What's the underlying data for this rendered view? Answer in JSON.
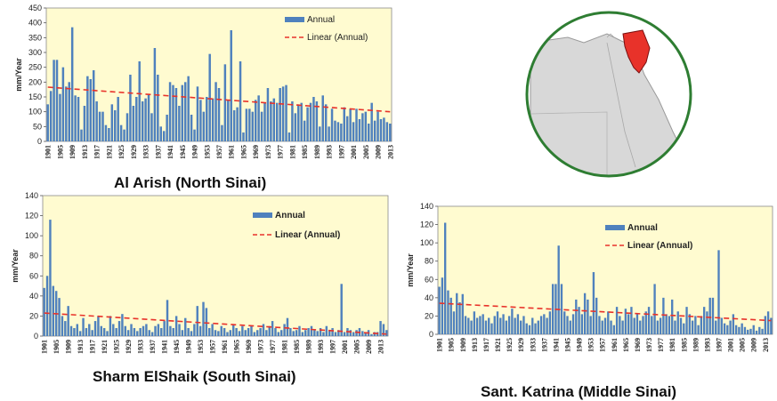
{
  "chart_data": [
    {
      "type": "bar",
      "title": "Al Arish (North Sinai)",
      "ylabel": "mm/Year",
      "ylim": [
        0,
        450
      ],
      "yticks": [
        0,
        50,
        100,
        150,
        200,
        250,
        300,
        350,
        400,
        450
      ],
      "x_start": 1901,
      "x_tick_labels": [
        "1901",
        "1905",
        "1909",
        "1913",
        "1917",
        "1921",
        "1925",
        "1929",
        "1933",
        "1937",
        "1941",
        "1945",
        "1949",
        "1953",
        "1957",
        "1961",
        "1965",
        "1969",
        "1973",
        "1977",
        "1981",
        "1985",
        "1989",
        "1993",
        "1997",
        "2001",
        "2005",
        "2009",
        "2013"
      ],
      "series": [
        {
          "name": "Annual",
          "color": "#4f81bd",
          "values": [
            125,
            170,
            275,
            275,
            160,
            250,
            185,
            200,
            385,
            155,
            150,
            40,
            120,
            220,
            210,
            240,
            135,
            100,
            100,
            55,
            45,
            125,
            105,
            150,
            55,
            40,
            95,
            225,
            120,
            150,
            270,
            135,
            145,
            160,
            95,
            315,
            225,
            50,
            35,
            90,
            200,
            190,
            180,
            120,
            190,
            200,
            220,
            90,
            40,
            185,
            140,
            100,
            150,
            295,
            145,
            200,
            180,
            55,
            260,
            140,
            375,
            105,
            115,
            270,
            30,
            110,
            110,
            100,
            140,
            155,
            100,
            130,
            180,
            135,
            145,
            130,
            180,
            185,
            190,
            30,
            135,
            95,
            125,
            130,
            70,
            115,
            130,
            150,
            135,
            50,
            155,
            125,
            50,
            110,
            70,
            65,
            60,
            115,
            85,
            110,
            65,
            110,
            75,
            95,
            100,
            60,
            130,
            70,
            100,
            75,
            80,
            65,
            60
          ]
        }
      ],
      "trend": {
        "name": "Linear (Annual)",
        "color": "#e8322a",
        "start": 183,
        "end": 100
      },
      "legend": "top-right"
    },
    {
      "type": "bar",
      "title": "Sharm ElShaik  (South Sinai)",
      "ylabel": "mm/Year",
      "ylim": [
        0,
        140
      ],
      "yticks": [
        0,
        20,
        40,
        60,
        80,
        100,
        120,
        140
      ],
      "x_start": 1901,
      "x_tick_labels": [
        "1901",
        "1905",
        "1909",
        "1913",
        "1917",
        "1921",
        "1925",
        "1929",
        "1933",
        "1937",
        "1941",
        "1945",
        "1949",
        "1953",
        "1957",
        "1961",
        "1965",
        "1969",
        "1973",
        "1977",
        "1981",
        "1985",
        "1989",
        "1993",
        "1997",
        "2001",
        "2005",
        "2009",
        "2013"
      ],
      "series": [
        {
          "name": "Annual",
          "color": "#4f81bd",
          "values": [
            48,
            60,
            116,
            50,
            45,
            38,
            20,
            15,
            30,
            10,
            8,
            12,
            5,
            18,
            8,
            12,
            6,
            15,
            20,
            10,
            8,
            5,
            20,
            12,
            8,
            15,
            22,
            10,
            6,
            12,
            8,
            5,
            8,
            10,
            12,
            6,
            4,
            10,
            12,
            8,
            15,
            36,
            10,
            8,
            20,
            12,
            6,
            18,
            8,
            5,
            12,
            30,
            10,
            34,
            28,
            8,
            12,
            6,
            5,
            10,
            8,
            4,
            6,
            12,
            8,
            5,
            10,
            6,
            8,
            10,
            4,
            6,
            8,
            12,
            6,
            10,
            15,
            8,
            4,
            6,
            12,
            18,
            8,
            5,
            6,
            10,
            4,
            6,
            8,
            10,
            6,
            5,
            8,
            4,
            10,
            6,
            8,
            4,
            6,
            52,
            4,
            8,
            6,
            4,
            6,
            8,
            5,
            4,
            6,
            2,
            4,
            4,
            15,
            12,
            6
          ]
        }
      ],
      "trend": {
        "name": "Linear (Annual)",
        "color": "#e8322a",
        "start": 23,
        "end": 2
      },
      "legend": "top-right"
    },
    {
      "type": "bar",
      "title": "Sant. Katrina  (Middle Sinai)",
      "ylabel": "mm/Year",
      "ylim": [
        0,
        140
      ],
      "yticks": [
        0,
        20,
        40,
        60,
        80,
        100,
        120,
        140
      ],
      "x_start": 1901,
      "x_tick_labels": [
        "1901",
        "1905",
        "1909",
        "1913",
        "1917",
        "1921",
        "1925",
        "1929",
        "1933",
        "1937",
        "1941",
        "1945",
        "1949",
        "1953",
        "1957",
        "1961",
        "1965",
        "1969",
        "1973",
        "1977",
        "1981",
        "1985",
        "1989",
        "1993",
        "1997",
        "2001",
        "2005",
        "2009",
        "2013"
      ],
      "series": [
        {
          "name": "Annual",
          "color": "#4f81bd",
          "values": [
            52,
            62,
            122,
            48,
            40,
            25,
            45,
            35,
            44,
            20,
            18,
            15,
            25,
            18,
            20,
            22,
            15,
            18,
            12,
            20,
            25,
            18,
            22,
            15,
            20,
            28,
            18,
            22,
            15,
            20,
            12,
            10,
            18,
            12,
            15,
            20,
            22,
            18,
            25,
            55,
            55,
            97,
            55,
            25,
            20,
            15,
            22,
            38,
            30,
            22,
            45,
            38,
            20,
            68,
            40,
            20,
            15,
            18,
            25,
            15,
            10,
            30,
            20,
            15,
            28,
            22,
            30,
            18,
            22,
            15,
            20,
            25,
            30,
            20,
            55,
            15,
            18,
            40,
            22,
            20,
            38,
            15,
            25,
            18,
            12,
            30,
            22,
            15,
            20,
            10,
            20,
            30,
            25,
            40,
            40,
            15,
            92,
            18,
            12,
            10,
            15,
            22,
            10,
            8,
            12,
            8,
            5,
            6,
            10,
            4,
            8,
            6,
            20,
            25,
            18
          ]
        }
      ],
      "trend": {
        "name": "Linear (Annual)",
        "color": "#e8322a",
        "start": 34,
        "end": 15
      },
      "legend": "top-right"
    }
  ],
  "map": {
    "ring_color": "#2e7d32",
    "land_color": "#d8d8d8",
    "highlight_color": "#e8322a",
    "icon": "egypt-map-icon"
  }
}
